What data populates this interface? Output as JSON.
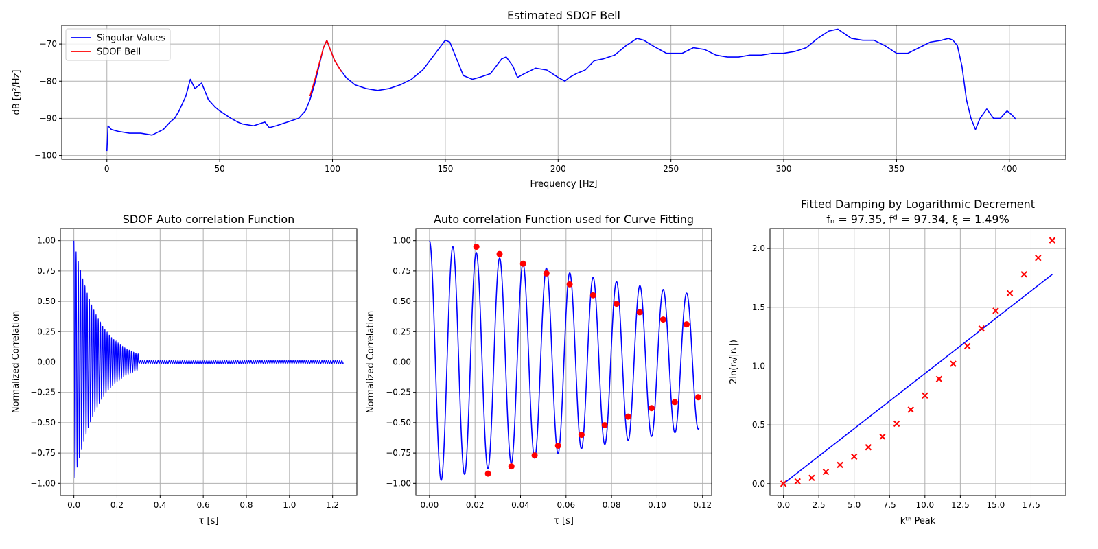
{
  "chart_data": [
    {
      "type": "line",
      "title": "Estimated SDOF Bell",
      "xlabel": "Frequency [Hz]",
      "ylabel": "dB [g²/Hz]",
      "xlim": [
        -20,
        425
      ],
      "ylim": [
        -101,
        -65
      ],
      "xticks": [
        0,
        50,
        100,
        150,
        200,
        250,
        300,
        350,
        400
      ],
      "yticks": [
        -100,
        -90,
        -80,
        -70
      ],
      "xtick_labels": [
        "0",
        "50",
        "100",
        "150",
        "200",
        "250",
        "300",
        "350",
        "400"
      ],
      "ytick_labels": [
        "−100",
        "−90",
        "−80",
        "−70"
      ],
      "grid": true,
      "legend": "top-left",
      "series": [
        {
          "name": "Singular Values",
          "color": "#0000ff",
          "x": [
            0,
            0.5,
            2,
            5,
            10,
            15,
            20,
            25,
            28,
            30,
            32,
            35,
            37,
            39,
            42,
            45,
            48,
            50,
            55,
            58,
            60,
            65,
            70,
            72,
            75,
            80,
            85,
            88,
            90,
            92,
            94,
            96,
            97.5,
            99,
            101,
            103,
            106,
            110,
            115,
            120,
            125,
            130,
            135,
            140,
            145,
            150,
            152,
            155,
            158,
            162,
            165,
            170,
            175,
            177,
            180,
            182,
            185,
            190,
            195,
            200,
            203,
            205,
            208,
            212,
            216,
            220,
            225,
            230,
            235,
            238,
            242,
            248,
            255,
            260,
            265,
            270,
            275,
            280,
            285,
            290,
            295,
            300,
            305,
            310,
            315,
            320,
            324,
            330,
            335,
            340,
            345,
            350,
            355,
            360,
            365,
            370,
            373,
            375,
            377,
            379,
            381,
            383,
            385,
            387,
            390,
            393,
            396,
            399,
            401,
            403
          ],
          "y": [
            -98.8,
            -92.0,
            -93.0,
            -93.5,
            -94.0,
            -94.0,
            -94.5,
            -93.0,
            -91.0,
            -90.0,
            -88.0,
            -84.0,
            -79.5,
            -82.0,
            -80.5,
            -85.0,
            -87.0,
            -88.0,
            -90.0,
            -91.0,
            -91.5,
            -92.0,
            -91.0,
            -92.5,
            -92.0,
            -91.0,
            -90.0,
            -88.0,
            -85.0,
            -81.0,
            -76.0,
            -71.0,
            -69.0,
            -71.5,
            -74.5,
            -76.5,
            -79.0,
            -81.0,
            -82.0,
            -82.5,
            -82.0,
            -81.0,
            -79.5,
            -77.0,
            -73.0,
            -69.0,
            -69.5,
            -74.0,
            -78.5,
            -79.5,
            -79.0,
            -78.0,
            -74.0,
            -73.5,
            -76.0,
            -79.0,
            -78.0,
            -76.5,
            -77.0,
            -79.0,
            -80.0,
            -79.0,
            -78.0,
            -77.0,
            -74.5,
            -74.0,
            -73.0,
            -70.5,
            -68.5,
            -69.0,
            -70.5,
            -72.5,
            -72.5,
            -71.0,
            -71.5,
            -73.0,
            -73.5,
            -73.5,
            -73.0,
            -73.0,
            -72.5,
            -72.5,
            -72.0,
            -71.0,
            -68.5,
            -66.5,
            -66.0,
            -68.5,
            -69.0,
            -69.0,
            -70.5,
            -72.5,
            -72.5,
            -71.0,
            -69.5,
            -69.0,
            -68.5,
            -69.0,
            -70.5,
            -76.0,
            -85.0,
            -90.0,
            -93.0,
            -90.0,
            -87.5,
            -90.0,
            -90.0,
            -88.0,
            -89.0,
            -90.3
          ]
        },
        {
          "name": "SDOF Bell",
          "color": "#ff0000",
          "x": [
            90,
            92,
            94,
            96,
            97.5,
            99,
            101,
            103,
            104
          ],
          "y": [
            -84.0,
            -80.0,
            -75.5,
            -71.0,
            -69.0,
            -71.5,
            -74.5,
            -76.5,
            -77.5
          ]
        }
      ]
    },
    {
      "type": "line",
      "title": "SDOF Auto correlation Function",
      "xlabel": "τ [s]",
      "ylabel": "Normalized Correlation",
      "xlim": [
        -0.0625,
        1.3125
      ],
      "ylim": [
        -1.1,
        1.1
      ],
      "xticks": [
        0.0,
        0.2,
        0.4,
        0.6,
        0.8,
        1.0,
        1.2
      ],
      "yticks": [
        -1.0,
        -0.75,
        -0.5,
        -0.25,
        0.0,
        0.25,
        0.5,
        0.75,
        1.0
      ],
      "xtick_labels": [
        "0.0",
        "0.2",
        "0.4",
        "0.6",
        "0.8",
        "1.0",
        "1.2"
      ],
      "ytick_labels": [
        "−1.00",
        "−0.75",
        "−0.50",
        "−0.25",
        "0.00",
        "0.25",
        "0.50",
        "0.75",
        "1.00"
      ],
      "grid": true,
      "series": [
        {
          "color": "#0000ff",
          "frequency_hz": 97.34,
          "damping_ratio": 0.0149,
          "decay_end_s": 0.3,
          "residual_amplitude": 0.012,
          "duration_s": 1.25
        }
      ]
    },
    {
      "type": "line",
      "title": "Auto correlation Function used for Curve Fitting",
      "xlabel": "τ [s]",
      "ylabel": "Normalized Correlation",
      "xlim": [
        -0.006,
        0.124
      ],
      "ylim": [
        -1.1,
        1.1
      ],
      "xticks": [
        0.0,
        0.02,
        0.04,
        0.06,
        0.08,
        0.1,
        0.12
      ],
      "yticks": [
        -1.0,
        -0.75,
        -0.5,
        -0.25,
        0.0,
        0.25,
        0.5,
        0.75,
        1.0
      ],
      "xtick_labels": [
        "0.00",
        "0.02",
        "0.04",
        "0.06",
        "0.08",
        "0.10",
        "0.12"
      ],
      "ytick_labels": [
        "−1.00",
        "−0.75",
        "−0.50",
        "−0.25",
        "0.00",
        "0.25",
        "0.50",
        "0.75",
        "1.00"
      ],
      "grid": true,
      "series": [
        {
          "type": "line",
          "color": "#0000ff",
          "frequency_hz": 97.34,
          "damping_ratio": 0.0149,
          "x_range": [
            0.0,
            0.1185
          ]
        },
        {
          "type": "scatter",
          "color": "#ff0000",
          "x": [
            0.0206,
            0.0257,
            0.0308,
            0.036,
            0.0411,
            0.0462,
            0.0514,
            0.0565,
            0.0616,
            0.0668,
            0.0719,
            0.077,
            0.0822,
            0.0873,
            0.0924,
            0.0976,
            0.1027,
            0.1078,
            0.113,
            0.1181
          ],
          "y": [
            0.95,
            -0.92,
            0.89,
            -0.86,
            0.81,
            -0.77,
            0.73,
            -0.69,
            0.64,
            -0.6,
            0.55,
            -0.52,
            0.48,
            -0.45,
            0.41,
            -0.38,
            0.35,
            -0.33,
            0.31,
            -0.29
          ]
        }
      ]
    },
    {
      "type": "scatter",
      "title_line1": "Fitted Damping by Logarithmic Decrement",
      "title_line2": "fₙ = 97.35, fᵈ = 97.34, ξ = 1.49%",
      "xlabel": "kᵗʰ Peak",
      "ylabel": "2ln(r₀/|rₖ|)",
      "xlim": [
        -0.95,
        19.95
      ],
      "ylim": [
        -0.1,
        2.17
      ],
      "xticks": [
        0.0,
        2.5,
        5.0,
        7.5,
        10.0,
        12.5,
        15.0,
        17.5
      ],
      "yticks": [
        0.0,
        0.5,
        1.0,
        1.5,
        2.0
      ],
      "xtick_labels": [
        "0.0",
        "2.5",
        "5.0",
        "7.5",
        "10.0",
        "12.5",
        "15.0",
        "17.5"
      ],
      "ytick_labels": [
        "0.0",
        "0.5",
        "1.0",
        "1.5",
        "2.0"
      ],
      "grid": true,
      "series": [
        {
          "type": "scatter",
          "color": "#ff0000",
          "marker": "x",
          "x": [
            0,
            1,
            2,
            3,
            4,
            5,
            6,
            7,
            8,
            9,
            10,
            11,
            12,
            13,
            14,
            15,
            16,
            17,
            18,
            19
          ],
          "y": [
            0.0,
            0.02,
            0.05,
            0.1,
            0.16,
            0.23,
            0.31,
            0.4,
            0.51,
            0.63,
            0.75,
            0.89,
            1.02,
            1.17,
            1.32,
            1.47,
            1.62,
            1.78,
            1.92,
            2.07
          ]
        },
        {
          "type": "line",
          "color": "#0000ff",
          "x": [
            0,
            19
          ],
          "y": [
            0.0,
            1.78
          ]
        }
      ]
    }
  ]
}
